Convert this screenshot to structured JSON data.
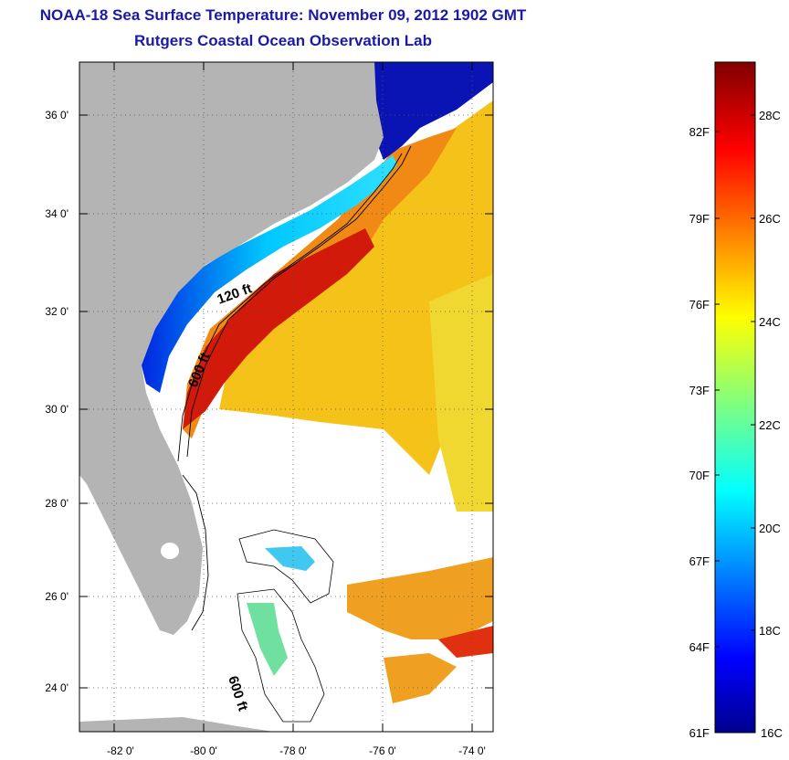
{
  "header": {
    "title": "NOAA-18 Sea Surface Temperature:  November 09, 2012 1902 GMT",
    "subtitle": "Rutgers Coastal Ocean Observation Lab"
  },
  "map": {
    "lon_range": [
      -83.0,
      -72.8
    ],
    "lat_range": [
      23.0,
      37.1
    ],
    "lat_ticks": [
      "36 0'",
      "34 0'",
      "32 0'",
      "30 0'",
      "28 0'",
      "26 0'",
      "24 0'"
    ],
    "lon_ticks": [
      "-82 0'",
      "-80 0'",
      "-78 0'",
      "-76 0'",
      "-74 0'"
    ],
    "contours": [
      "120 ft",
      "600 ft",
      "600 ft"
    ],
    "colors": {
      "land": "#b4b4b4",
      "no_data": "#ffffff",
      "gulf_stream": "#d21a0a",
      "frame": "#000000"
    }
  },
  "colorbar": {
    "fahrenheit": [
      "82F",
      "79F",
      "76F",
      "73F",
      "70F",
      "67F",
      "64F",
      "61F"
    ],
    "celsius": [
      "28C",
      "26C",
      "24C",
      "22C",
      "20C",
      "18C",
      "16C"
    ],
    "scale_min_c": 16,
    "scale_max_c": 29,
    "colormap": "jet"
  }
}
